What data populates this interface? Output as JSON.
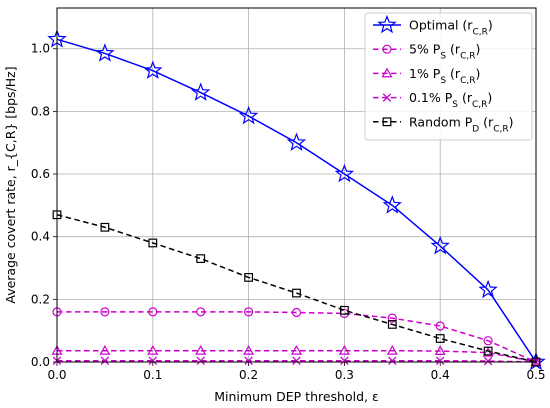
{
  "chart_data": {
    "type": "line",
    "x": [
      0.0,
      0.05,
      0.1,
      0.15,
      0.2,
      0.25,
      0.3,
      0.35,
      0.4,
      0.45,
      0.5
    ],
    "xlabel": "Minimum DEP threshold, ε",
    "ylabel": "Average covert rate, r_{C,R} [bps/Hz]",
    "xlim": [
      0.0,
      0.5
    ],
    "ylim": [
      0.0,
      1.13
    ],
    "x_ticks": [
      "0.0",
      "0.1",
      "0.2",
      "0.3",
      "0.4",
      "0.5"
    ],
    "y_ticks": [
      "0.0",
      "0.2",
      "0.4",
      "0.6",
      "0.8",
      "1.0"
    ],
    "grid": true,
    "legend_position": "top-right",
    "series": [
      {
        "name": "Optimal",
        "legend_label": "Optimal (r_{C,R})",
        "color": "#0000ff",
        "marker": "star",
        "dash": "solid",
        "values": [
          1.03,
          0.985,
          0.93,
          0.86,
          0.785,
          0.7,
          0.6,
          0.5,
          0.37,
          0.23,
          0.0
        ]
      },
      {
        "name": "5% P_S",
        "legend_label": "5% P_S (r_{C,R})",
        "color": "#cc00cc",
        "marker": "circle",
        "dash": "dashed",
        "values": [
          0.16,
          0.16,
          0.16,
          0.16,
          0.16,
          0.158,
          0.155,
          0.14,
          0.115,
          0.068,
          0.0
        ]
      },
      {
        "name": "1% P_S",
        "legend_label": "1% P_S (r_{C,R})",
        "color": "#cc00cc",
        "marker": "triangle",
        "dash": "dashed",
        "values": [
          0.036,
          0.036,
          0.036,
          0.036,
          0.036,
          0.036,
          0.036,
          0.036,
          0.035,
          0.03,
          0.0
        ]
      },
      {
        "name": "0.1% P_S",
        "legend_label": "0.1% P_S (r_{C,R})",
        "color": "#cc00cc",
        "marker": "x",
        "dash": "dashed",
        "values": [
          0.004,
          0.004,
          0.004,
          0.004,
          0.004,
          0.004,
          0.004,
          0.004,
          0.004,
          0.003,
          0.0
        ]
      },
      {
        "name": "Random P_D",
        "legend_label": "Random P_D (r_{C,R})",
        "color": "#000000",
        "marker": "square",
        "dash": "dashed",
        "values": [
          0.47,
          0.43,
          0.38,
          0.33,
          0.27,
          0.22,
          0.165,
          0.12,
          0.075,
          0.035,
          0.0
        ]
      }
    ]
  }
}
